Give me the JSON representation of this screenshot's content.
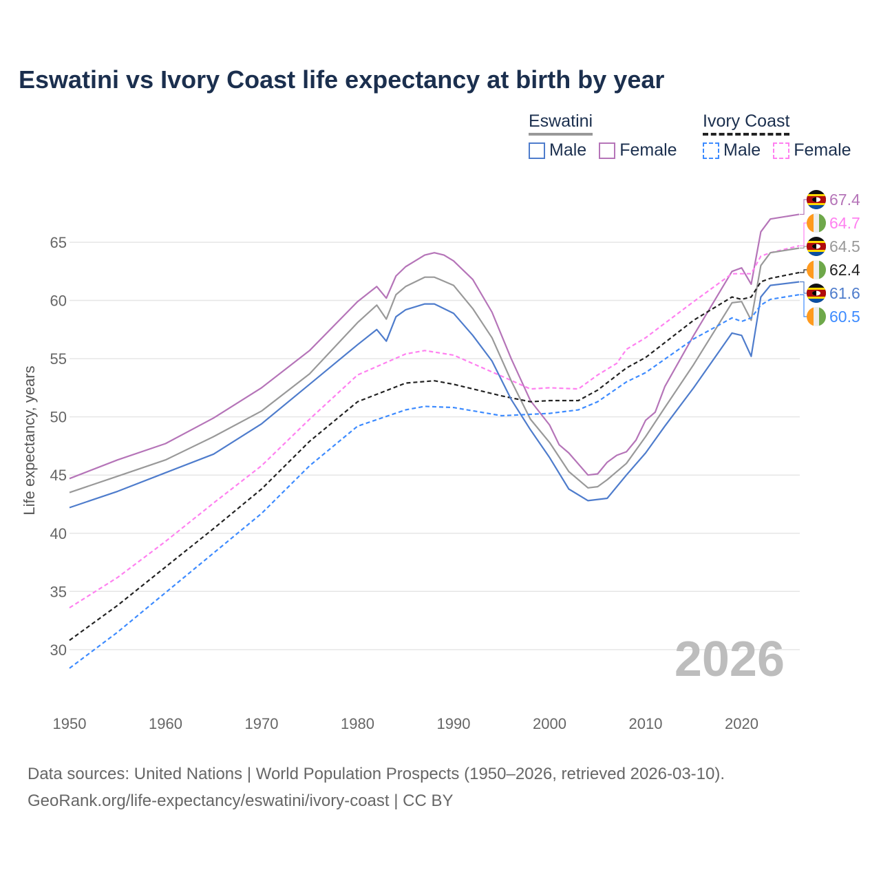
{
  "title": "Eswatini vs Ivory Coast life expectancy at birth by year",
  "legend": {
    "groups": [
      {
        "name": "Eswatini",
        "items": [
          "Male",
          "Female"
        ]
      },
      {
        "name": "Ivory Coast",
        "items": [
          "Male",
          "Female"
        ]
      }
    ]
  },
  "year_watermark": "2026",
  "footer": {
    "line1": "Data sources: United Nations | World Population Prospects (1950–2026, retrieved 2026-03-10).",
    "line2": "GeoRank.org/life-expectancy/eswatini/ivory-coast | CC BY"
  },
  "chart_data": {
    "type": "line",
    "title": "Eswatini vs Ivory Coast life expectancy at birth by year",
    "xlabel": "",
    "ylabel": "Life expectancy, years",
    "xlim": [
      1950,
      2026
    ],
    "ylim": [
      26,
      68
    ],
    "xticks": [
      1950,
      1960,
      1970,
      1980,
      1990,
      2000,
      2010,
      2020
    ],
    "yticks": [
      30,
      35,
      40,
      45,
      50,
      55,
      60,
      65
    ],
    "grid": true,
    "legend_position": "top-right",
    "series": [
      {
        "name": "Eswatini Female",
        "country": "Eswatini",
        "color": "#b574b8",
        "dash": false,
        "flag": "eswatini",
        "end_label": "67.4",
        "x": [
          1950,
          1955,
          1960,
          1965,
          1970,
          1975,
          1980,
          1982,
          1983,
          1984,
          1985,
          1987,
          1988,
          1989,
          1990,
          1992,
          1994,
          1996,
          1998,
          2000,
          2001,
          2002,
          2004,
          2005,
          2006,
          2007,
          2008,
          2009,
          2010,
          2011,
          2012,
          2015,
          2019,
          2020,
          2021,
          2022,
          2023,
          2026
        ],
        "y": [
          44.7,
          46.3,
          47.7,
          49.9,
          52.5,
          55.7,
          59.9,
          61.2,
          60.2,
          62.1,
          62.9,
          63.9,
          64.1,
          63.9,
          63.4,
          61.8,
          59.0,
          55.0,
          51.4,
          49.3,
          47.6,
          46.9,
          45.0,
          45.1,
          46.1,
          46.7,
          47.0,
          48.0,
          49.7,
          50.4,
          52.6,
          57.0,
          62.5,
          62.8,
          61.4,
          65.9,
          67.0,
          67.4
        ]
      },
      {
        "name": "Ivory Coast Female",
        "country": "Ivory Coast",
        "color": "#ff80f0",
        "dash": true,
        "flag": "ivory-coast",
        "end_label": "64.7",
        "x": [
          1950,
          1955,
          1960,
          1965,
          1970,
          1975,
          1980,
          1985,
          1987,
          1990,
          1995,
          1998,
          2000,
          2003,
          2005,
          2007,
          2008,
          2010,
          2015,
          2019,
          2021,
          2022,
          2023,
          2026
        ],
        "y": [
          33.6,
          36.2,
          39.3,
          42.6,
          45.8,
          49.8,
          53.6,
          55.4,
          55.7,
          55.3,
          53.5,
          52.4,
          52.5,
          52.4,
          53.6,
          54.6,
          55.8,
          56.8,
          59.9,
          62.3,
          62.3,
          63.8,
          64.1,
          64.7
        ]
      },
      {
        "name": "Eswatini",
        "country": "Eswatini",
        "color": "#999999",
        "dash": false,
        "flag": "eswatini",
        "end_label": "64.5",
        "x": [
          1950,
          1955,
          1960,
          1965,
          1970,
          1975,
          1980,
          1982,
          1983,
          1984,
          1985,
          1987,
          1988,
          1990,
          1992,
          1994,
          1996,
          1998,
          2000,
          2002,
          2004,
          2005,
          2006,
          2008,
          2010,
          2012,
          2015,
          2019,
          2020,
          2021,
          2022,
          2023,
          2026
        ],
        "y": [
          43.5,
          44.9,
          46.3,
          48.3,
          50.5,
          53.7,
          58.1,
          59.6,
          58.4,
          60.5,
          61.2,
          62.0,
          62.0,
          61.3,
          59.3,
          56.8,
          53.1,
          49.8,
          47.8,
          45.3,
          43.9,
          44.0,
          44.6,
          46.0,
          48.3,
          50.8,
          54.5,
          59.8,
          59.9,
          58.3,
          63.0,
          64.1,
          64.5
        ]
      },
      {
        "name": "Ivory Coast",
        "country": "Ivory Coast",
        "color": "#222222",
        "dash": true,
        "flag": "ivory-coast",
        "end_label": "62.4",
        "x": [
          1950,
          1955,
          1960,
          1965,
          1970,
          1975,
          1980,
          1985,
          1988,
          1990,
          1995,
          1998,
          2000,
          2003,
          2005,
          2008,
          2010,
          2015,
          2019,
          2020,
          2021,
          2022,
          2023,
          2026
        ],
        "y": [
          30.8,
          33.8,
          37.1,
          40.4,
          43.8,
          47.9,
          51.3,
          52.9,
          53.1,
          52.8,
          51.8,
          51.3,
          51.4,
          51.4,
          52.3,
          54.2,
          55.1,
          58.3,
          60.3,
          60.1,
          60.3,
          61.6,
          61.9,
          62.4
        ]
      },
      {
        "name": "Eswatini Male",
        "country": "Eswatini",
        "color": "#4e7ccc",
        "dash": false,
        "flag": "eswatini",
        "end_label": "61.6",
        "x": [
          1950,
          1955,
          1960,
          1965,
          1970,
          1975,
          1980,
          1982,
          1983,
          1984,
          1985,
          1987,
          1988,
          1990,
          1992,
          1994,
          1996,
          1998,
          2000,
          2002,
          2004,
          2006,
          2008,
          2010,
          2012,
          2015,
          2019,
          2020,
          2021,
          2022,
          2023,
          2026
        ],
        "y": [
          42.2,
          43.6,
          45.2,
          46.8,
          49.4,
          52.8,
          56.2,
          57.5,
          56.5,
          58.6,
          59.2,
          59.7,
          59.7,
          58.9,
          57.0,
          54.8,
          51.5,
          48.9,
          46.5,
          43.8,
          42.8,
          43.0,
          45.0,
          46.9,
          49.2,
          52.5,
          57.2,
          57.0,
          55.2,
          60.3,
          61.3,
          61.6
        ]
      },
      {
        "name": "Ivory Coast Male",
        "country": "Ivory Coast",
        "color": "#3d8bff",
        "dash": true,
        "flag": "ivory-coast",
        "end_label": "60.5",
        "x": [
          1950,
          1955,
          1960,
          1965,
          1970,
          1975,
          1980,
          1985,
          1987,
          1990,
          1995,
          2000,
          2003,
          2005,
          2008,
          2010,
          2015,
          2019,
          2020,
          2021,
          2022,
          2023,
          2026
        ],
        "y": [
          28.4,
          31.5,
          34.9,
          38.3,
          41.7,
          45.8,
          49.2,
          50.6,
          50.9,
          50.8,
          50.1,
          50.3,
          50.6,
          51.3,
          53.0,
          53.8,
          56.7,
          58.5,
          58.2,
          58.5,
          59.6,
          60.1,
          60.5
        ]
      }
    ]
  }
}
